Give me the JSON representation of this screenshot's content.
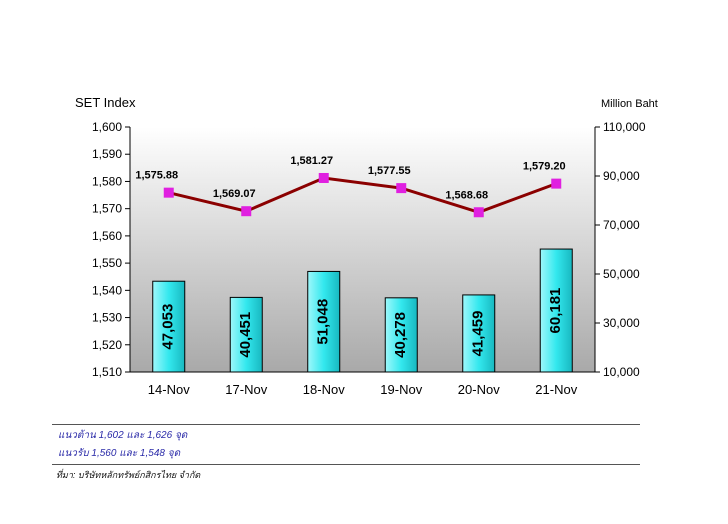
{
  "chart_data": {
    "type": "bar+line",
    "categories": [
      "14-Nov",
      "17-Nov",
      "18-Nov",
      "19-Nov",
      "20-Nov",
      "21-Nov"
    ],
    "left_axis": {
      "title": "SET Index",
      "ylim": [
        1510,
        1600
      ],
      "ticks": [
        1510,
        1520,
        1530,
        1540,
        1550,
        1560,
        1570,
        1580,
        1590,
        1600
      ],
      "tick_labels": [
        "1,510",
        "1,520",
        "1,530",
        "1,540",
        "1,550",
        "1,560",
        "1,570",
        "1,580",
        "1,590",
        "1,600"
      ]
    },
    "right_axis": {
      "title": "Million Baht",
      "ylim": [
        10000,
        110000
      ],
      "ticks": [
        10000,
        30000,
        50000,
        70000,
        90000,
        110000
      ],
      "tick_labels": [
        "10,000",
        "30,000",
        "50,000",
        "70,000",
        "90,000",
        "110,000"
      ]
    },
    "series": [
      {
        "type": "line",
        "axis": "left",
        "values": [
          1575.88,
          1569.07,
          1581.27,
          1577.55,
          1568.68,
          1579.2
        ],
        "labels": [
          "1,575.88",
          "1,569.07",
          "1,581.27",
          "1,577.55",
          "1,568.68",
          "1,579.20"
        ],
        "color": "#8b0000",
        "marker_color": "#e020e0"
      },
      {
        "type": "bar",
        "axis": "right",
        "values": [
          47053,
          40451,
          51048,
          40278,
          41459,
          60181
        ],
        "labels": [
          "47,053",
          "40,451",
          "51,048",
          "40,278",
          "41,459",
          "60,181"
        ],
        "color": "#33e8ee"
      }
    ],
    "grid": false,
    "plot_background": "gradient white to gray"
  },
  "notes": {
    "resistance": "แนวต้าน 1,602 และ 1,626 จุด",
    "support": "แนวรับ 1,560 และ 1,548 จุด",
    "source": "ที่มา: บริษัทหลักทรัพย์กสิกรไทย จำกัด"
  }
}
